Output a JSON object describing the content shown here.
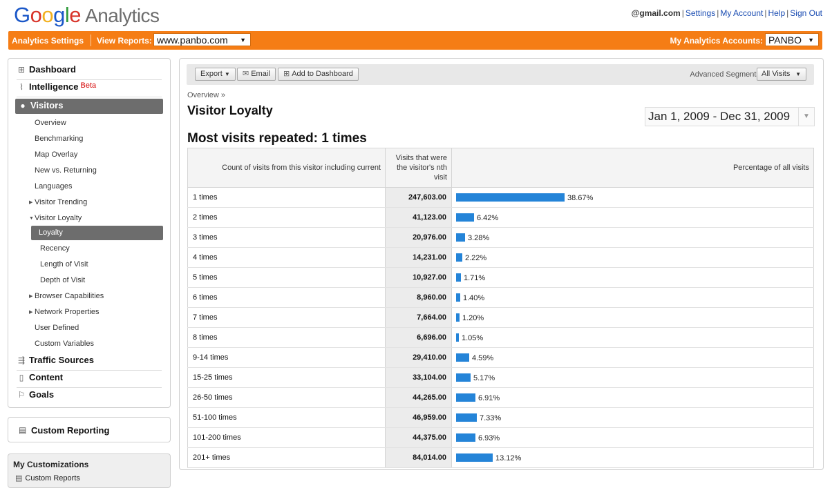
{
  "header": {
    "logo_word": "Google",
    "product": "Analytics",
    "email": "@gmail.com",
    "links": [
      "Settings",
      "My Account",
      "Help",
      "Sign Out"
    ],
    "separator": "|"
  },
  "orangebar": {
    "settings_label": "Analytics Settings",
    "view_reports_label": "View Reports:",
    "view_reports_value": "www.panbo.com",
    "accounts_label": "My Analytics Accounts:",
    "accounts_value": "PANBO",
    "accent_color": "#f57d15"
  },
  "sidebar": {
    "sections": {
      "dashboard": "Dashboard",
      "intelligence": "Intelligence",
      "intelligence_badge": "Beta",
      "visitors": "Visitors",
      "traffic_sources": "Traffic Sources",
      "content": "Content",
      "goals": "Goals"
    },
    "visitor_items": {
      "overview": "Overview",
      "benchmarking": "Benchmarking",
      "map_overlay": "Map Overlay",
      "new_vs_returning": "New vs. Returning",
      "languages": "Languages",
      "visitor_trending": "Visitor Trending",
      "visitor_loyalty": "Visitor Loyalty",
      "loyalty": "Loyalty",
      "recency": "Recency",
      "length_of_visit": "Length of Visit",
      "depth_of_visit": "Depth of Visit",
      "browser_capabilities": "Browser Capabilities",
      "network_properties": "Network Properties",
      "user_defined": "User Defined",
      "custom_variables": "Custom Variables"
    },
    "custom_reporting": "Custom Reporting",
    "my_customizations": {
      "title": "My Customizations",
      "item": "Custom Reports"
    }
  },
  "toolbar": {
    "export": "Export",
    "email": "Email",
    "add_to_dashboard": "Add to Dashboard",
    "segments_label": "Advanced Segments:",
    "segments_value": "All Visits"
  },
  "main": {
    "breadcrumb": "Overview »",
    "title": "Visitor Loyalty",
    "date_range": "Jan 1, 2009 - Dec 31, 2009",
    "headline": "Most visits repeated: 1 times"
  },
  "table": {
    "headers": {
      "count": "Count of visits from this visitor including current",
      "visits": "Visits that were the visitor's nth visit",
      "percentage": "Percentage of all visits"
    },
    "bar_color": "#2484d8",
    "rows": [
      {
        "label": "1 times",
        "visits": "247,603.00",
        "pct_text": "38.67%",
        "pct": 38.67
      },
      {
        "label": "2 times",
        "visits": "41,123.00",
        "pct_text": "6.42%",
        "pct": 6.42
      },
      {
        "label": "3 times",
        "visits": "20,976.00",
        "pct_text": "3.28%",
        "pct": 3.28
      },
      {
        "label": "4 times",
        "visits": "14,231.00",
        "pct_text": "2.22%",
        "pct": 2.22
      },
      {
        "label": "5 times",
        "visits": "10,927.00",
        "pct_text": "1.71%",
        "pct": 1.71
      },
      {
        "label": "6 times",
        "visits": "8,960.00",
        "pct_text": "1.40%",
        "pct": 1.4
      },
      {
        "label": "7 times",
        "visits": "7,664.00",
        "pct_text": "1.20%",
        "pct": 1.2
      },
      {
        "label": "8 times",
        "visits": "6,696.00",
        "pct_text": "1.05%",
        "pct": 1.05
      },
      {
        "label": "9-14 times",
        "visits": "29,410.00",
        "pct_text": "4.59%",
        "pct": 4.59
      },
      {
        "label": "15-25 times",
        "visits": "33,104.00",
        "pct_text": "5.17%",
        "pct": 5.17
      },
      {
        "label": "26-50 times",
        "visits": "44,265.00",
        "pct_text": "6.91%",
        "pct": 6.91
      },
      {
        "label": "51-100 times",
        "visits": "46,959.00",
        "pct_text": "7.33%",
        "pct": 7.33
      },
      {
        "label": "101-200 times",
        "visits": "44,375.00",
        "pct_text": "6.93%",
        "pct": 6.93
      },
      {
        "label": "201+ times",
        "visits": "84,014.00",
        "pct_text": "13.12%",
        "pct": 13.12
      }
    ]
  }
}
